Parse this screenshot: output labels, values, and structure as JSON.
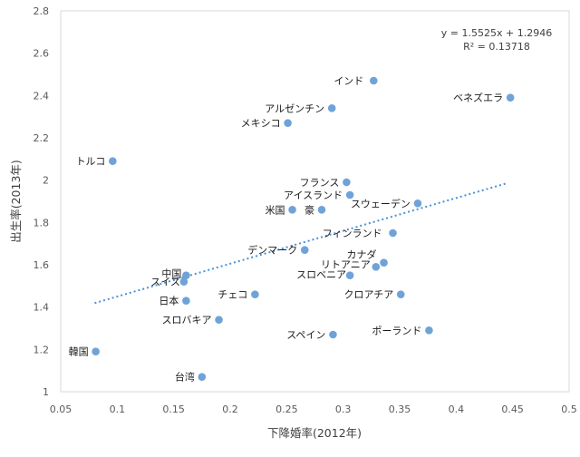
{
  "chart_data": {
    "type": "scatter",
    "title": "",
    "xlabel": "下降婚率(2012年)",
    "ylabel": "出生率(2013年)",
    "xlim": [
      0.05,
      0.5
    ],
    "ylim": [
      1,
      2.8
    ],
    "xticks": [
      "0.05",
      "0.1",
      "0.15",
      "0.2",
      "0.25",
      "0.3",
      "0.35",
      "0.4",
      "0.45",
      "0.5"
    ],
    "yticks": [
      "1",
      "1.2",
      "1.4",
      "1.6",
      "1.8",
      "2",
      "2.2",
      "2.4",
      "2.6",
      "2.8"
    ],
    "grid": false,
    "marker_color": "#6FA3D8",
    "trendline": {
      "type": "linear",
      "slope": 1.5525,
      "intercept": 1.2946,
      "x_range": [
        0.08,
        0.445
      ],
      "color": "#4A90D9",
      "equation": "y = 1.5525x + 1.2946",
      "r_squared": "R² = 0.13718"
    },
    "points": [
      {
        "label": "インド",
        "x": 0.327,
        "y": 2.47
      },
      {
        "label": "ベネズエラ",
        "x": 0.448,
        "y": 2.39
      },
      {
        "label": "アルゼンチン",
        "x": 0.29,
        "y": 2.34
      },
      {
        "label": "メキシコ",
        "x": 0.251,
        "y": 2.27
      },
      {
        "label": "トルコ",
        "x": 0.096,
        "y": 2.09
      },
      {
        "label": "フランス",
        "x": 0.303,
        "y": 1.99
      },
      {
        "label": "アイスランド",
        "x": 0.306,
        "y": 1.93
      },
      {
        "label": "スウェーデン",
        "x": 0.366,
        "y": 1.89
      },
      {
        "label": "米国",
        "x": 0.255,
        "y": 1.86
      },
      {
        "label": "豪",
        "x": 0.281,
        "y": 1.86
      },
      {
        "label": "フィンランド",
        "x": 0.344,
        "y": 1.75
      },
      {
        "label": "デンマーク",
        "x": 0.266,
        "y": 1.67
      },
      {
        "label": "カナダ",
        "x": 0.336,
        "y": 1.61
      },
      {
        "label": "リトアニア",
        "x": 0.329,
        "y": 1.59
      },
      {
        "label": "スロベニア",
        "x": 0.306,
        "y": 1.55
      },
      {
        "label": "クロアチア",
        "x": 0.351,
        "y": 1.46
      },
      {
        "label": "スペイン",
        "x": 0.291,
        "y": 1.27
      },
      {
        "label": "ポーランド",
        "x": 0.376,
        "y": 1.29
      },
      {
        "label": "中国",
        "x": 0.161,
        "y": 1.55
      },
      {
        "label": "スイス",
        "x": 0.159,
        "y": 1.52
      },
      {
        "label": "日本",
        "x": 0.161,
        "y": 1.43
      },
      {
        "label": "チェコ",
        "x": 0.222,
        "y": 1.46
      },
      {
        "label": "スロバキア",
        "x": 0.19,
        "y": 1.34
      },
      {
        "label": "韓国",
        "x": 0.081,
        "y": 1.19
      },
      {
        "label": "台湾",
        "x": 0.175,
        "y": 1.07
      }
    ]
  }
}
